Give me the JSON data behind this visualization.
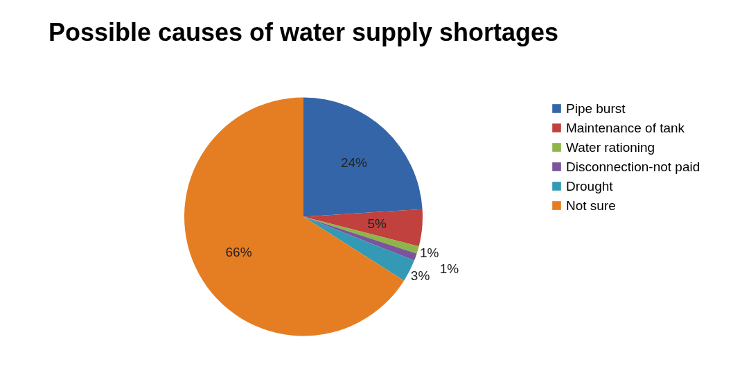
{
  "chart_data": {
    "type": "pie",
    "title": "Possible causes of water supply shortages",
    "categories": [
      "Pipe burst",
      "Maintenance of tank",
      "Water rationing",
      "Disconnection-not paid",
      "Drought",
      "Not sure"
    ],
    "values": [
      24,
      5,
      1,
      1,
      3,
      66
    ],
    "colors": [
      "#3465a8",
      "#c0413d",
      "#8db548",
      "#7a559e",
      "#3399b5",
      "#e57e22"
    ],
    "value_labels": [
      "24%",
      "5%",
      "1%",
      "1%",
      "3%",
      "66%"
    ],
    "legend": "right"
  }
}
